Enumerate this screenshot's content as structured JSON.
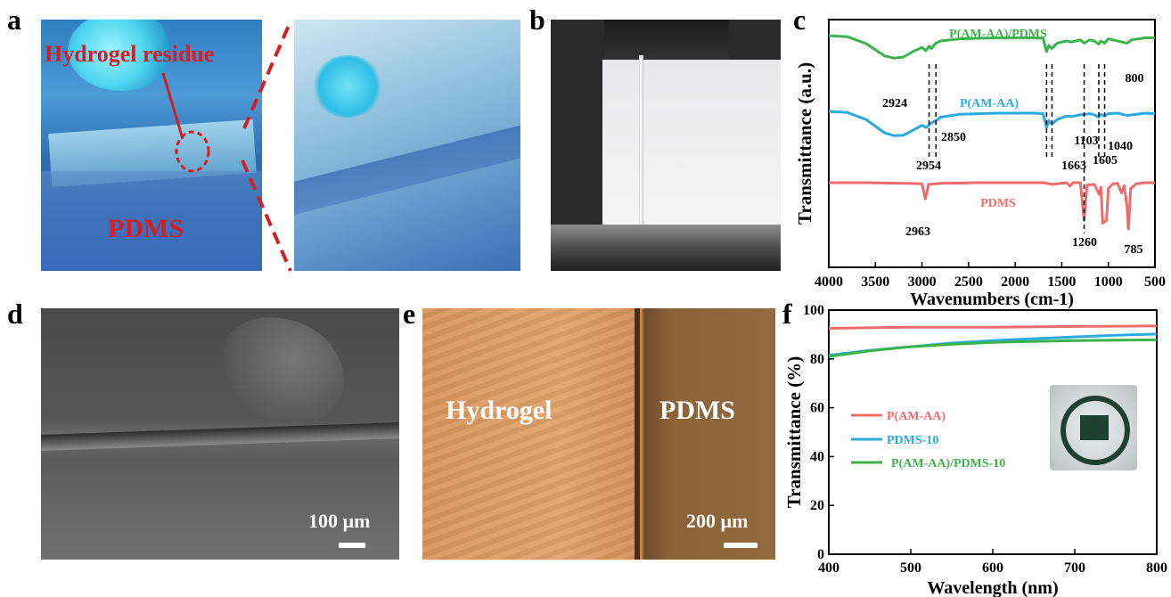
{
  "panels": {
    "a": "a",
    "b": "b",
    "c": "c",
    "d": "d",
    "e": "e",
    "f": "f"
  },
  "panel_a": {
    "residue_label": "Hydrogel residue",
    "pdms_label": "PDMS",
    "label_color": "#d21f26"
  },
  "panel_d": {
    "scale_label": "100 µm"
  },
  "panel_e": {
    "hydrogel_label": "Hydrogel",
    "pdms_label": "PDMS",
    "scale_label": "200 µm"
  },
  "chart_data": [
    {
      "type": "line",
      "panel": "c",
      "xlabel": "Wavenumbers (cm-1)",
      "ylabel": "Transmittance (a.u.)",
      "xlim": [
        4000,
        500
      ],
      "x_ticks": [
        4000,
        3500,
        3000,
        2500,
        2000,
        1500,
        1000,
        500
      ],
      "series": [
        {
          "name": "P(AM-AA)/PDMS",
          "color": "#3cb34a",
          "x": [
            4000,
            3800,
            3600,
            3400,
            3300,
            3200,
            3100,
            3000,
            2960,
            2924,
            2900,
            2850,
            2800,
            2600,
            2200,
            1800,
            1700,
            1663,
            1640,
            1605,
            1550,
            1450,
            1400,
            1300,
            1260,
            1200,
            1150,
            1103,
            1080,
            1040,
            1000,
            900,
            800,
            750,
            600,
            500
          ],
          "y": [
            1.0,
            0.98,
            0.85,
            0.62,
            0.58,
            0.6,
            0.7,
            0.78,
            0.72,
            0.8,
            0.76,
            0.86,
            0.9,
            0.94,
            0.96,
            0.96,
            0.95,
            0.7,
            0.82,
            0.76,
            0.86,
            0.9,
            0.88,
            0.92,
            0.86,
            0.92,
            0.9,
            0.84,
            0.9,
            0.86,
            0.94,
            0.9,
            0.86,
            0.92,
            0.96,
            0.96
          ]
        },
        {
          "name": "P(AM-AA)",
          "color": "#29abe2",
          "x": [
            4000,
            3800,
            3600,
            3400,
            3300,
            3200,
            3100,
            3000,
            2954,
            2900,
            2850,
            2800,
            2600,
            2200,
            1800,
            1700,
            1663,
            1640,
            1605,
            1550,
            1450,
            1400,
            1300,
            1200,
            1150,
            1103,
            1080,
            1040,
            1000,
            900,
            800,
            700,
            600,
            500
          ],
          "y": [
            1.0,
            0.98,
            0.86,
            0.63,
            0.58,
            0.59,
            0.67,
            0.76,
            0.72,
            0.8,
            0.84,
            0.9,
            0.95,
            0.97,
            0.97,
            0.96,
            0.72,
            0.84,
            0.78,
            0.86,
            0.92,
            0.91,
            0.94,
            0.96,
            0.94,
            0.9,
            0.95,
            0.92,
            0.96,
            0.97,
            0.93,
            0.95,
            0.97,
            0.96
          ]
        },
        {
          "name": "PDMS",
          "color": "#f26b6b",
          "x": [
            4000,
            3600,
            3200,
            3000,
            2963,
            2930,
            2800,
            2400,
            2000,
            1700,
            1600,
            1450,
            1412,
            1380,
            1300,
            1260,
            1230,
            1150,
            1100,
            1080,
            1060,
            1020,
            1000,
            950,
            900,
            860,
            830,
            800,
            785,
            760,
            700,
            600,
            500
          ],
          "y": [
            1.0,
            1.0,
            0.99,
            0.98,
            0.72,
            0.97,
            0.99,
            1.0,
            1.0,
            1.0,
            0.97,
            1.0,
            0.94,
            1.0,
            1.0,
            0.35,
            0.96,
            0.97,
            0.8,
            0.92,
            0.3,
            0.35,
            0.9,
            0.98,
            0.99,
            0.82,
            0.95,
            0.6,
            0.2,
            0.9,
            0.98,
            1.0,
            1.0
          ]
        }
      ],
      "annotations": [
        "2924",
        "2850",
        "2954",
        "1663",
        "1605",
        "1103",
        "1040",
        "800",
        "2963",
        "1260",
        "785"
      ]
    },
    {
      "type": "line",
      "panel": "f",
      "xlabel": "Wavelength (nm)",
      "ylabel": "Transmittance (%)",
      "xlim": [
        400,
        800
      ],
      "ylim": [
        0,
        100
      ],
      "x_ticks": [
        400,
        500,
        600,
        700,
        800
      ],
      "y_ticks": [
        0,
        20,
        40,
        60,
        80,
        100
      ],
      "legend_position": "left",
      "series": [
        {
          "name": "P(AM-AA)",
          "color": "#f26b6b",
          "x": [
            400,
            500,
            600,
            700,
            800
          ],
          "y": [
            92.5,
            93.0,
            93.0,
            93.3,
            93.5
          ]
        },
        {
          "name": "PDMS-10",
          "color": "#29abe2",
          "x": [
            400,
            450,
            500,
            550,
            600,
            650,
            700,
            750,
            800
          ],
          "y": [
            81.5,
            83.5,
            85.0,
            86.5,
            87.5,
            88.3,
            89.0,
            89.7,
            90.2
          ]
        },
        {
          "name": "P(AM-AA)/PDMS-10",
          "color": "#3cb34a",
          "x": [
            400,
            450,
            500,
            550,
            600,
            650,
            700,
            750,
            800
          ],
          "y": [
            81.0,
            83.3,
            85.0,
            86.0,
            86.8,
            87.2,
            87.5,
            87.7,
            87.8
          ]
        }
      ]
    }
  ]
}
